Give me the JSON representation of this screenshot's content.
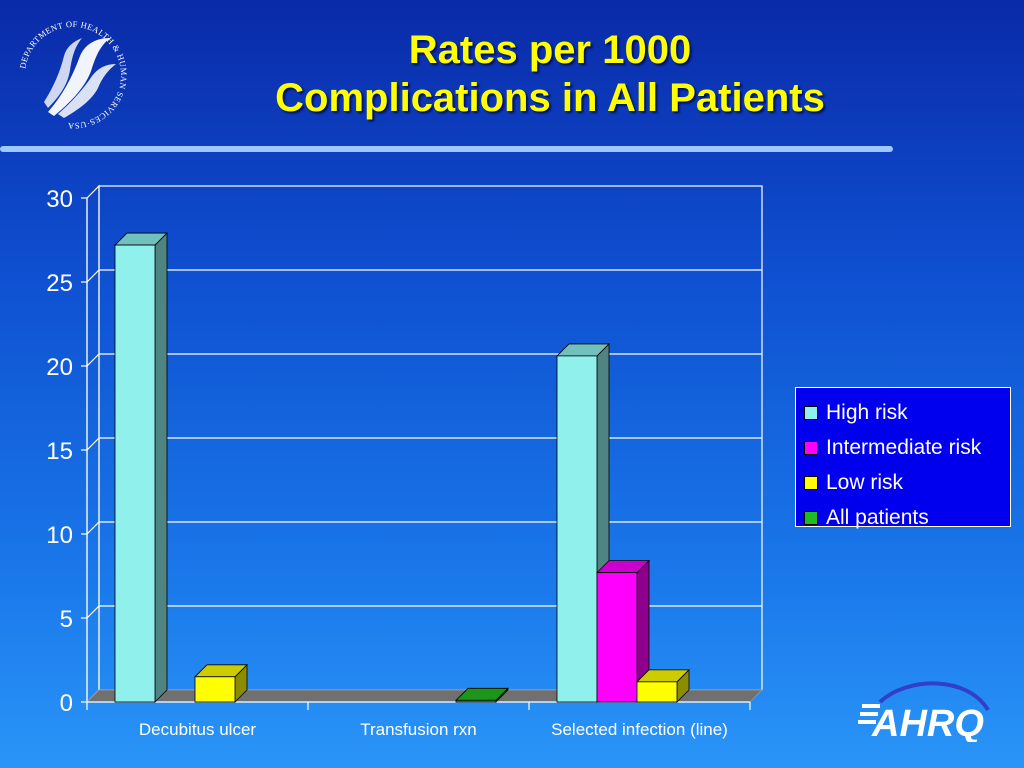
{
  "slide": {
    "title_line1": "Rates per 1000",
    "title_line2": "Complications in All Patients"
  },
  "logos": {
    "hhs_text": "DEPARTMENT OF HEALTH & HUMAN SERVICES·USA",
    "ahrq_text": "AHRQ"
  },
  "colors": {
    "background_top": "#0a2aa8",
    "background_bottom": "#2a95f8",
    "title": "#ffff00",
    "legend_bg": "#0000ee"
  },
  "chart_data": {
    "type": "bar",
    "title": "",
    "xlabel": "",
    "ylabel": "",
    "categories": [
      "Decubitus ulcer",
      "Transfusion rxn",
      "Selected infection (line)"
    ],
    "series": [
      {
        "name": "High risk",
        "color": "#8ff0ec",
        "values": [
          27.2,
          0,
          20.6
        ]
      },
      {
        "name": "Intermediate risk",
        "color": "#ff00ff",
        "values": [
          0,
          0,
          7.7
        ]
      },
      {
        "name": "Low risk",
        "color": "#ffff00",
        "values": [
          1.5,
          0,
          1.2
        ]
      },
      {
        "name": "All patients",
        "color": "#22bb22",
        "values": [
          0,
          0.1,
          0
        ]
      }
    ],
    "yticks": [
      "0",
      "5",
      "10",
      "15",
      "20",
      "25",
      "30"
    ],
    "ylim": [
      0,
      30
    ],
    "grid": true,
    "legend_position": "right",
    "style": "3d"
  }
}
